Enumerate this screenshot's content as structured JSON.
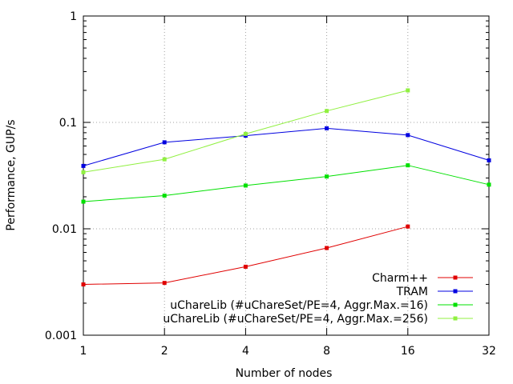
{
  "chart_data": {
    "type": "line",
    "xlabel": "Number of nodes",
    "ylabel": "Performance, GUP/s",
    "x_scale": "log2",
    "y_scale": "log10",
    "xlim": [
      1,
      32
    ],
    "ylim": [
      0.001,
      1
    ],
    "x_ticks": [
      "1",
      "2",
      "4",
      "8",
      "16",
      "32"
    ],
    "y_ticks": [
      "0.001",
      "0.01",
      "0.1",
      "1"
    ],
    "grid": true,
    "legend_position": "bottom-right",
    "series": [
      {
        "name": "Charm++",
        "color": "#e00000",
        "x": [
          1,
          2,
          4,
          8,
          16
        ],
        "y": [
          0.003,
          0.0031,
          0.0044,
          0.0066,
          0.0105
        ]
      },
      {
        "name": "TRAM",
        "color": "#0000e0",
        "x": [
          1,
          2,
          4,
          8,
          16,
          32
        ],
        "y": [
          0.039,
          0.065,
          0.075,
          0.088,
          0.076,
          0.044
        ]
      },
      {
        "name": "uChareLib (#uChareSet/PE=4, Aggr.Max.=16)",
        "color": "#00e000",
        "x": [
          1,
          2,
          4,
          8,
          16,
          32
        ],
        "y": [
          0.018,
          0.0205,
          0.0255,
          0.031,
          0.0395,
          0.026
        ]
      },
      {
        "name": "uChareLib (#uChareSet/PE=4, Aggr.Max.=256)",
        "color": "#90f040",
        "x": [
          1,
          2,
          4,
          8,
          16
        ],
        "y": [
          0.034,
          0.045,
          0.078,
          0.128,
          0.2
        ]
      }
    ]
  }
}
